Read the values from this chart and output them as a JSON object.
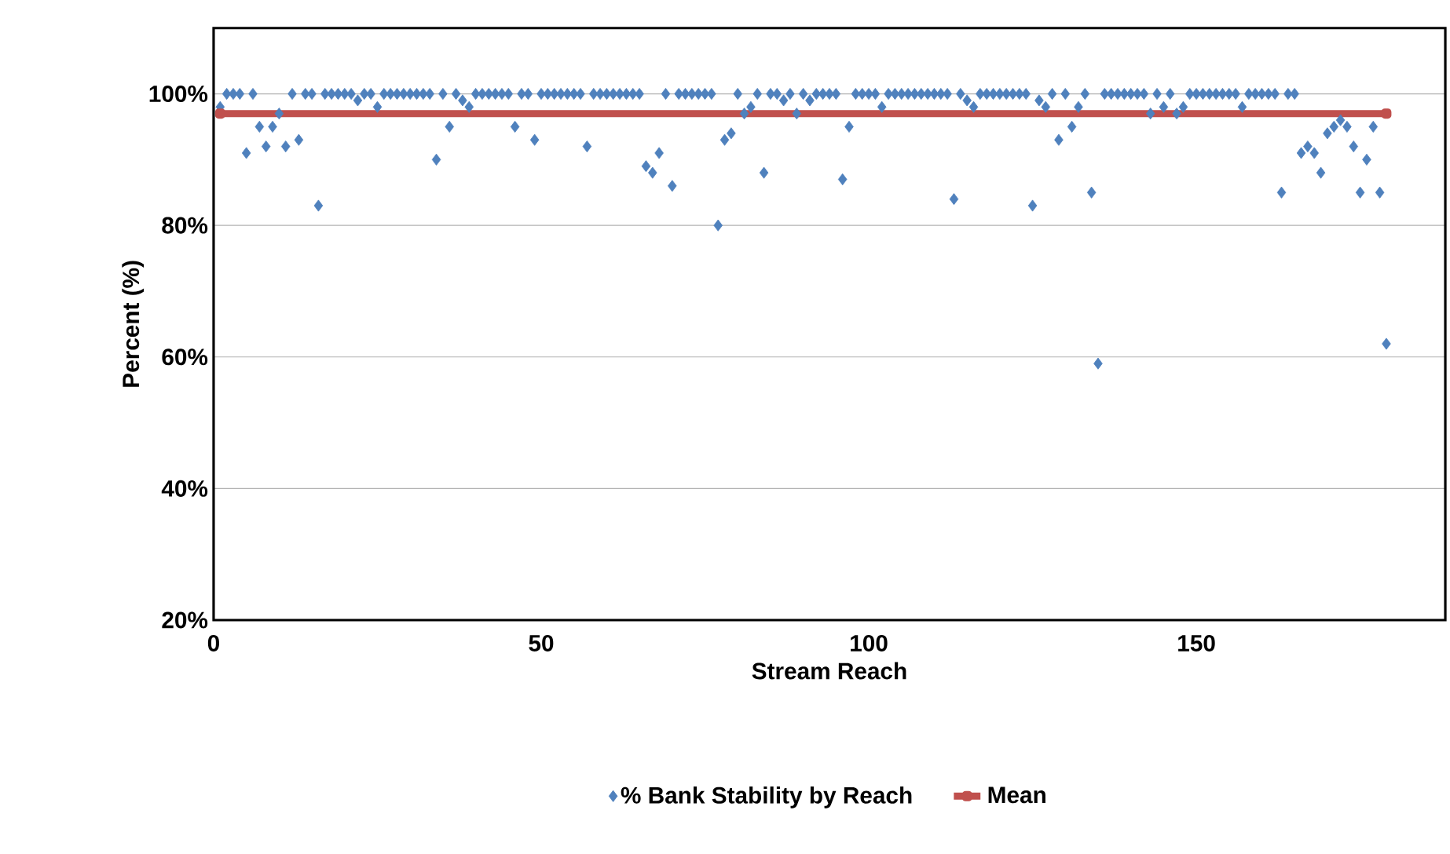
{
  "chart_data": {
    "type": "scatter",
    "xlabel": "Stream Reach",
    "ylabel": "Percent (%)",
    "xlim": [
      0,
      188
    ],
    "ylim": [
      20,
      110
    ],
    "xticks": [
      0,
      50,
      100,
      150
    ],
    "yticks": [
      {
        "value": 20,
        "label": "20%"
      },
      {
        "value": 40,
        "label": "40%"
      },
      {
        "value": 60,
        "label": "60%"
      },
      {
        "value": 80,
        "label": "80%"
      },
      {
        "value": 100,
        "label": "100%"
      }
    ],
    "grid": "y",
    "legend": "bottom",
    "series": [
      {
        "name": "% Bank Stability by Reach",
        "color": "#4f81bd",
        "marker": "diamond",
        "x": [
          1,
          2,
          3,
          4,
          5,
          6,
          7,
          8,
          9,
          10,
          11,
          12,
          13,
          14,
          15,
          16,
          17,
          18,
          19,
          20,
          21,
          22,
          23,
          24,
          25,
          26,
          27,
          28,
          29,
          30,
          31,
          32,
          33,
          34,
          35,
          36,
          37,
          38,
          39,
          40,
          41,
          42,
          43,
          44,
          45,
          46,
          47,
          48,
          49,
          50,
          51,
          52,
          53,
          54,
          55,
          56,
          57,
          58,
          59,
          60,
          61,
          62,
          63,
          64,
          65,
          66,
          67,
          68,
          69,
          70,
          71,
          72,
          73,
          74,
          75,
          76,
          77,
          78,
          79,
          80,
          81,
          82,
          83,
          84,
          85,
          86,
          87,
          88,
          89,
          90,
          91,
          92,
          93,
          94,
          95,
          96,
          97,
          98,
          99,
          100,
          101,
          102,
          103,
          104,
          105,
          106,
          107,
          108,
          109,
          110,
          111,
          112,
          113,
          114,
          115,
          116,
          117,
          118,
          119,
          120,
          121,
          122,
          123,
          124,
          125,
          126,
          127,
          128,
          129,
          130,
          131,
          132,
          133,
          134,
          135,
          136,
          137,
          138,
          139,
          140,
          141,
          142,
          143,
          144,
          145,
          146,
          147,
          148,
          149,
          150,
          151,
          152,
          153,
          154,
          155,
          156,
          157,
          158,
          159,
          160,
          161,
          162,
          163,
          164,
          165,
          166,
          167,
          168,
          169,
          170,
          171,
          172,
          173,
          174,
          175,
          176,
          177,
          178,
          179
        ],
        "values": [
          98,
          100,
          100,
          100,
          91,
          100,
          95,
          92,
          95,
          97,
          92,
          100,
          93,
          100,
          100,
          83,
          100,
          100,
          100,
          100,
          100,
          99,
          100,
          100,
          98,
          100,
          100,
          100,
          100,
          100,
          100,
          100,
          100,
          90,
          100,
          95,
          100,
          99,
          98,
          100,
          100,
          100,
          100,
          100,
          100,
          95,
          100,
          100,
          93,
          100,
          100,
          100,
          100,
          100,
          100,
          100,
          92,
          100,
          100,
          100,
          100,
          100,
          100,
          100,
          100,
          89,
          88,
          91,
          100,
          86,
          100,
          100,
          100,
          100,
          100,
          100,
          80,
          93,
          94,
          100,
          97,
          98,
          100,
          88,
          100,
          100,
          99,
          100,
          97,
          100,
          99,
          100,
          100,
          100,
          100,
          87,
          95,
          100,
          100,
          100,
          100,
          98,
          100,
          100,
          100,
          100,
          100,
          100,
          100,
          100,
          100,
          100,
          84,
          100,
          99,
          98,
          100,
          100,
          100,
          100,
          100,
          100,
          100,
          100,
          83,
          99,
          98,
          100,
          93,
          100,
          95,
          98,
          100,
          85,
          59,
          100,
          100,
          100,
          100,
          100,
          100,
          100,
          97,
          100,
          98,
          100,
          97,
          98,
          100,
          100,
          100,
          100,
          100,
          100,
          100,
          100,
          98,
          100,
          100,
          100,
          100,
          100,
          85,
          100,
          100,
          91,
          92,
          91,
          88,
          94,
          95,
          96,
          95,
          92,
          85,
          90,
          95,
          85,
          62
        ]
      },
      {
        "name": "Mean",
        "type": "line",
        "color": "#c0504d",
        "marker": "square",
        "x": [
          1,
          179
        ],
        "values": [
          97,
          97
        ]
      }
    ]
  }
}
